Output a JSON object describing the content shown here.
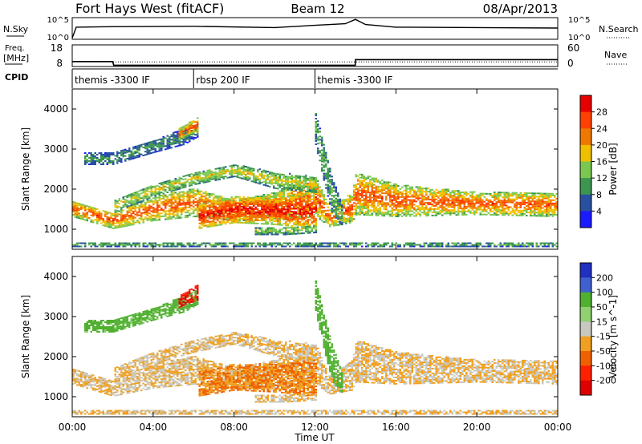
{
  "header": {
    "station": "Fort Hays West (fitACF)",
    "beam": "Beam 12",
    "date": "08/Apr/2013"
  },
  "noise_panel": {
    "left_label": "N.Sky",
    "right_label": "N.Search",
    "left_ticks": [
      "10^5",
      "10^0"
    ],
    "right_ticks": [
      "10^5",
      "10^0"
    ]
  },
  "freq_panel": {
    "left_label_line1": "Freq.",
    "left_label_line2": "[MHz]",
    "right_label": "Nave",
    "left_ticks": [
      "18",
      "8"
    ],
    "right_ticks": [
      "60",
      "0"
    ]
  },
  "cpid": {
    "label": "CPID",
    "segments": [
      {
        "text": "themis -3300 IF",
        "start_hour": 0
      },
      {
        "text": "rbsp 200 IF",
        "start_hour": 6
      },
      {
        "text": "themis -3300 IF",
        "start_hour": 12
      }
    ]
  },
  "power_panel": {
    "ylabel": "Slant Range [km]",
    "colorbar_label": "Power [dB]",
    "colorbar_ticks": [
      "28",
      "24",
      "20",
      "16",
      "12",
      "8",
      "4"
    ],
    "colors": [
      "#1a1aff",
      "#2850a0",
      "#3c9650",
      "#7ac850",
      "#f0c000",
      "#f07800",
      "#ff4000",
      "#e80000"
    ]
  },
  "velocity_panel": {
    "ylabel": "Slant Range [km]",
    "colorbar_label": "Velocity [m s^-1]",
    "colorbar_ticks": [
      "200",
      "100",
      "50",
      "15",
      "-15",
      "-50",
      "-100",
      "-200"
    ],
    "colors": [
      "#2030c0",
      "#4060d0",
      "#50b030",
      "#90d070",
      "#c8c8c0",
      "#f0a020",
      "#f06000",
      "#ff2000",
      "#e00000"
    ]
  },
  "x_axis": {
    "label": "Time UT",
    "ticks": [
      "00:00",
      "04:00",
      "08:00",
      "12:00",
      "16:00",
      "20:00",
      "00:00"
    ]
  },
  "chart_data": {
    "type": "heatmap",
    "x_unit": "hours UT",
    "xlim": [
      0,
      24
    ],
    "ylim": [
      500,
      4500
    ],
    "y_ticks": [
      1000,
      2000,
      3000,
      4000
    ],
    "power_scale": [
      0,
      30
    ],
    "velocity_scale": [
      -250,
      250
    ],
    "noise_sky_log10": [
      [
        0,
        0.3
      ],
      [
        0.2,
        2.8
      ],
      [
        2,
        2.9
      ],
      [
        6,
        3.0
      ],
      [
        10,
        2.7
      ],
      [
        11.9,
        3.2
      ],
      [
        13.5,
        3.6
      ],
      [
        14,
        4.6
      ],
      [
        14.5,
        3.4
      ],
      [
        16,
        2.8
      ],
      [
        24,
        2.6
      ]
    ],
    "frequency_mhz": [
      [
        0,
        10.3
      ],
      [
        2,
        10.3
      ],
      [
        2.05,
        8.6
      ],
      [
        13.99,
        8.6
      ],
      [
        14,
        11.2
      ],
      [
        24,
        11.2
      ]
    ],
    "nave": [
      [
        0,
        13
      ],
      [
        24,
        13
      ]
    ],
    "features": [
      {
        "name": "main_band",
        "points": [
          [
            0,
            1300,
            1700
          ],
          [
            2,
            1000,
            1400
          ],
          [
            4,
            1200,
            1800
          ],
          [
            6,
            1300,
            2000
          ],
          [
            8,
            1200,
            1700
          ],
          [
            10,
            1200,
            1900
          ],
          [
            12,
            1300,
            2300
          ],
          [
            12.7,
            1050,
            1500
          ],
          [
            13.8,
            1150,
            1900
          ],
          [
            14,
            1350,
            2400
          ],
          [
            16,
            1300,
            2100
          ],
          [
            20,
            1350,
            1900
          ],
          [
            24,
            1300,
            1900
          ]
        ],
        "power": 20,
        "velocity": -15
      },
      {
        "name": "upper_arc",
        "points": [
          [
            0.5,
            2600,
            2900
          ],
          [
            2,
            2600,
            2900
          ],
          [
            4,
            2900,
            3200
          ],
          [
            5.5,
            3100,
            3500
          ],
          [
            6.2,
            3300,
            3700
          ]
        ],
        "power": 8,
        "velocity": 60
      },
      {
        "name": "upper_arc_end",
        "points": [
          [
            5.2,
            3200,
            3500
          ],
          [
            5.6,
            3300,
            3600
          ],
          [
            6.2,
            3400,
            3800
          ]
        ],
        "power": 20,
        "velocity": -200
      },
      {
        "name": "central_patch",
        "points": [
          [
            6.2,
            1000,
            1600
          ],
          [
            8,
            1150,
            1800
          ],
          [
            10,
            1100,
            1800
          ],
          [
            12,
            1000,
            1900
          ]
        ],
        "power": 24,
        "velocity": -50
      },
      {
        "name": "mid_arc",
        "points": [
          [
            2,
            1400,
            1700
          ],
          [
            4,
            1800,
            2100
          ],
          [
            6,
            2100,
            2400
          ],
          [
            8,
            2300,
            2600
          ],
          [
            10,
            2000,
            2400
          ],
          [
            12,
            1900,
            2300
          ]
        ],
        "power": 14,
        "velocity": -15
      },
      {
        "name": "low_streak",
        "points": [
          [
            9,
            850,
            1050
          ],
          [
            10.5,
            850,
            1050
          ],
          [
            12,
            900,
            1100
          ]
        ],
        "power": 12,
        "velocity": -15
      },
      {
        "name": "noon_spike",
        "points": [
          [
            12,
            3100,
            3900
          ],
          [
            12.4,
            2200,
            3100
          ],
          [
            12.8,
            1400,
            2300
          ],
          [
            13.3,
            1050,
            1600
          ]
        ],
        "power": 10,
        "velocity": 70
      },
      {
        "name": "near_range",
        "points": [
          [
            0,
            550,
            650
          ],
          [
            24,
            550,
            650
          ]
        ],
        "power": 10,
        "velocity": -15
      }
    ]
  }
}
